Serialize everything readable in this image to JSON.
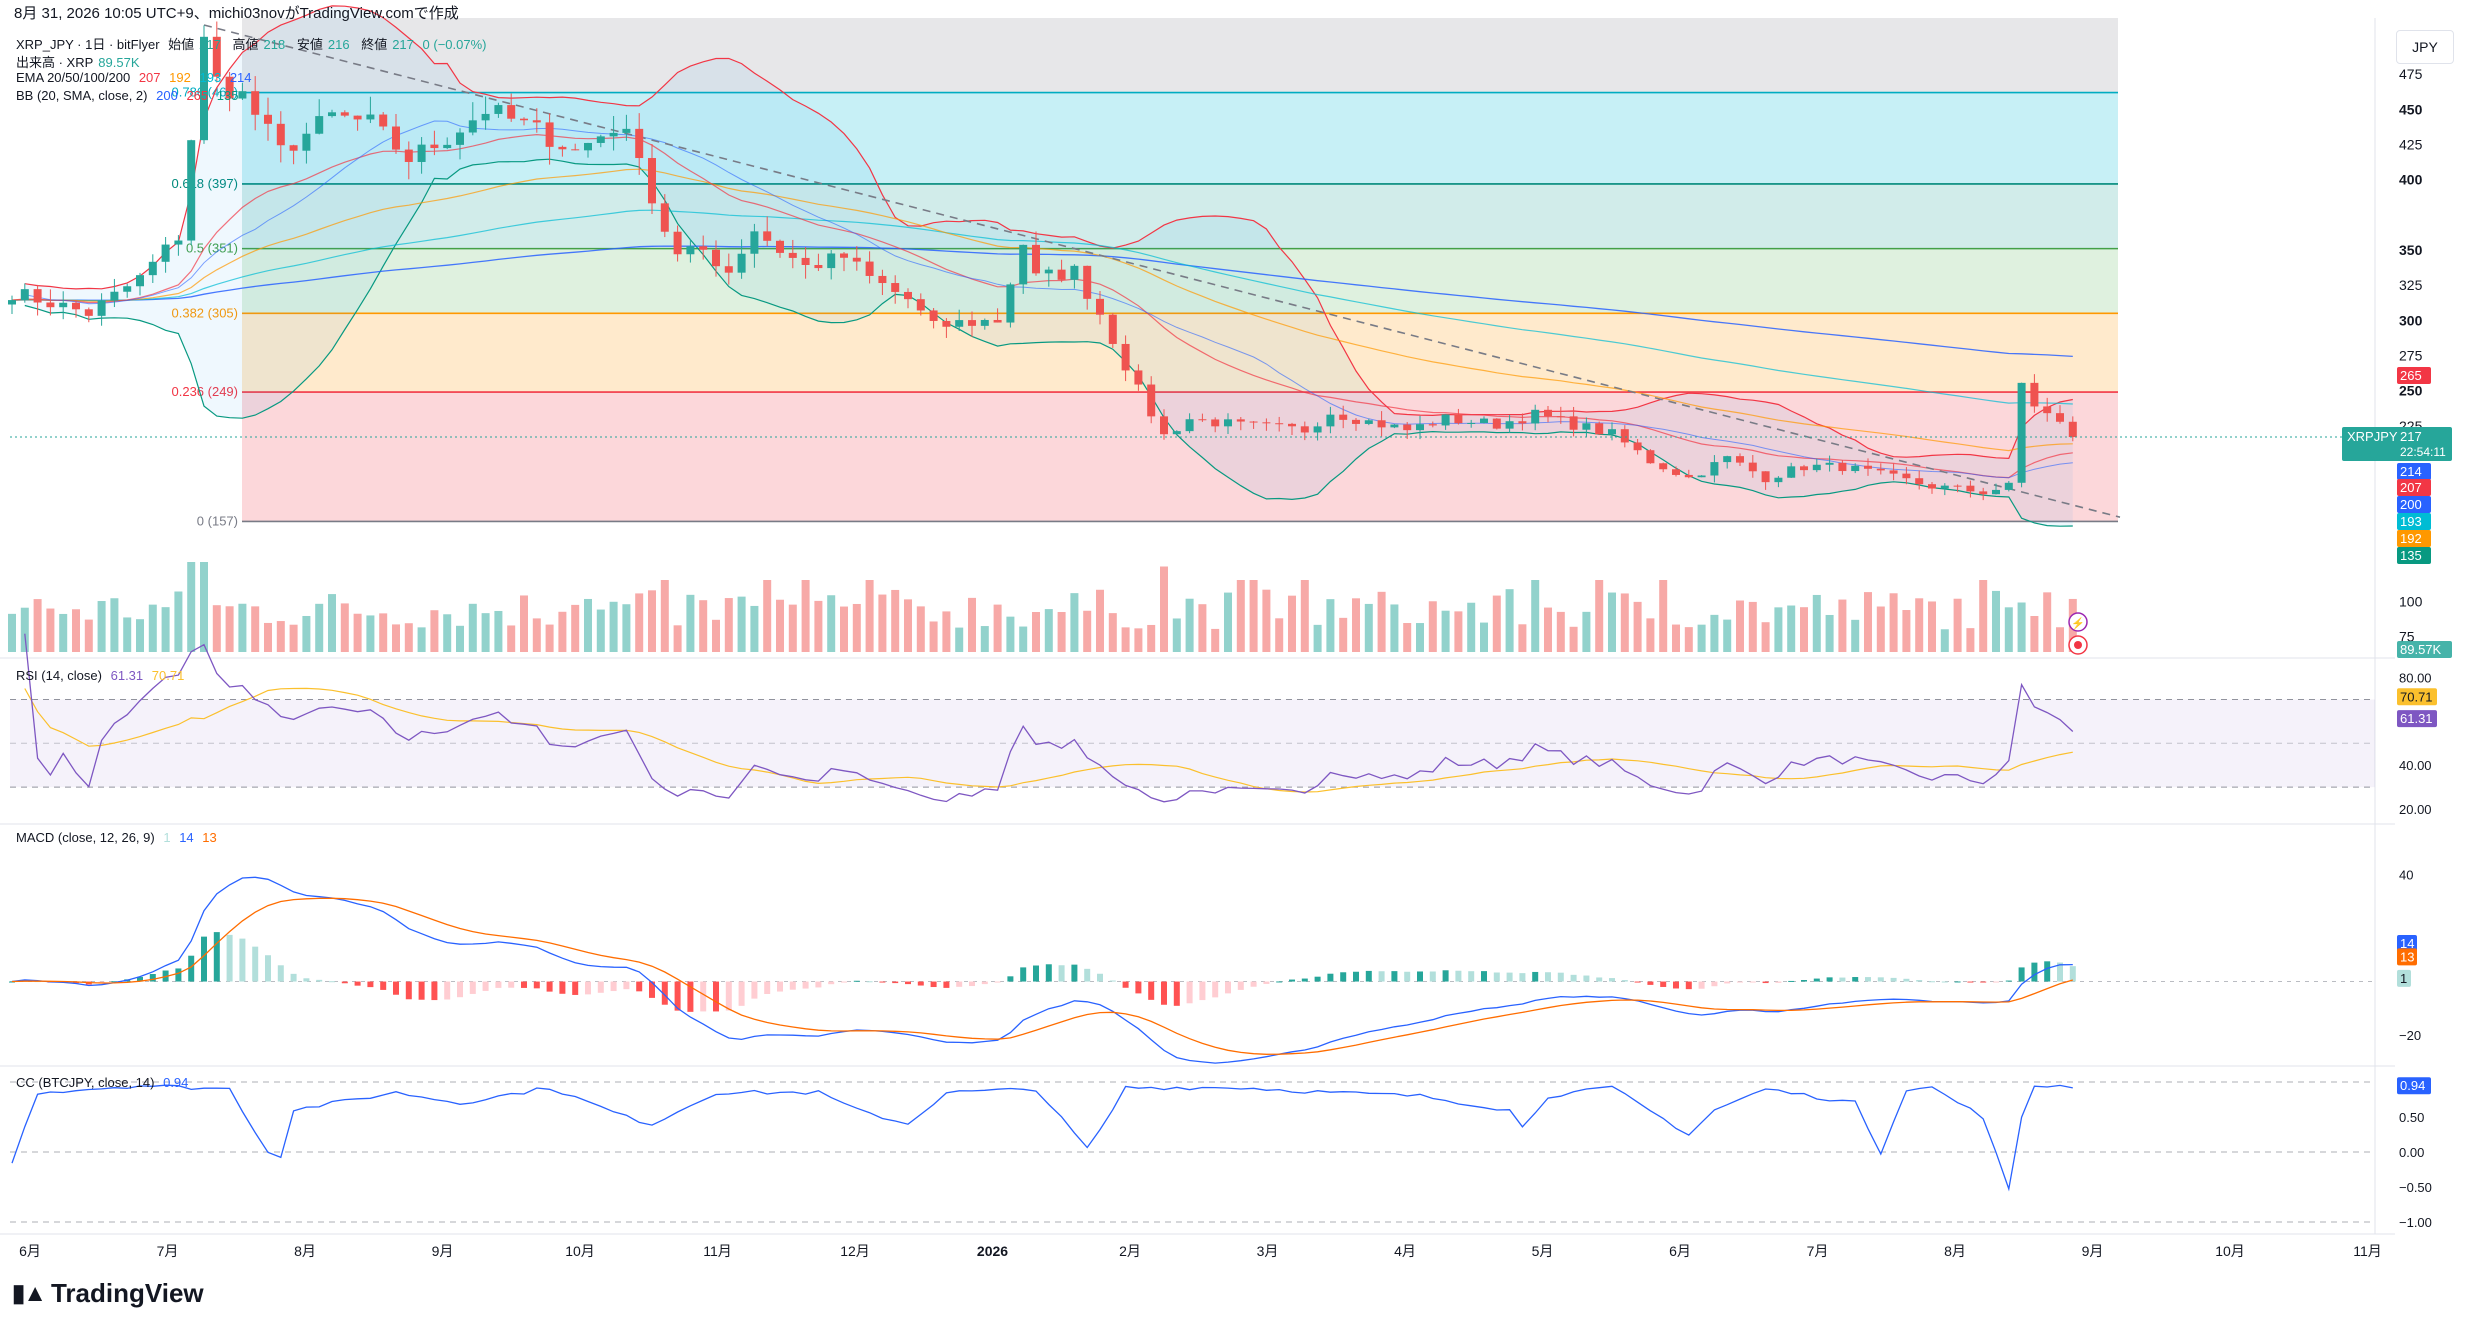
{
  "header": {
    "timestamp_text": "8月 31, 2026 10:05 UTC+9、michi03novがTradingView.comで作成"
  },
  "symbol": {
    "title": "XRP_JPY · 1日 · bitFlyer",
    "open_label": "始値",
    "open": "217",
    "high_label": "高値",
    "high": "218",
    "low_label": "安値",
    "low": "216",
    "close_label": "終値",
    "close": "217",
    "change": "0 (−0.07%)"
  },
  "indicators": {
    "volume": {
      "label": "出来高 · XRP",
      "value": "89.57K"
    },
    "ema": {
      "label": "EMA 20/50/100/200",
      "values": [
        "207",
        "192",
        "193",
        "214"
      ]
    },
    "bb": {
      "label": "BB (20, SMA, close, 2)",
      "values": [
        "200",
        "265",
        "135"
      ]
    },
    "rsi": {
      "label": "RSI (14, close)",
      "values": [
        "61.31",
        "70.71"
      ]
    },
    "macd": {
      "label": "MACD (close, 12, 26, 9)",
      "values": [
        "1",
        "14",
        "13"
      ]
    },
    "cc": {
      "label": "CC (BTCJPY, close, 14)",
      "value": "0.94"
    }
  },
  "currency_button": "JPY",
  "brand": "TradingView",
  "colors": {
    "up": "#26a69a",
    "down": "#ef5350",
    "ema20": "#f23645",
    "ema50": "#ff9800",
    "ema100": "#00bcd4",
    "ema200": "#2962ff",
    "bb_basis": "#2962ff",
    "bb_upper": "#f23645",
    "bb_lower": "#089981",
    "rsi": "#7e57c2",
    "rsi_ma": "#fbc02d",
    "macd": "#2962ff",
    "signal": "#ff6d00",
    "cc": "#2962ff"
  },
  "chart_data": {
    "type": "candlestick",
    "x_ticks": [
      "6月",
      "7月",
      "8月",
      "9月",
      "10月",
      "11月",
      "12月",
      "2026",
      "2月",
      "3月",
      "4月",
      "5月",
      "6月",
      "7月",
      "8月",
      "9月",
      "10月",
      "11月"
    ],
    "price_axis": {
      "ticks": [
        475,
        450,
        425,
        400,
        350,
        325,
        300,
        275,
        250,
        225,
        100,
        75
      ],
      "bold_ticks": [
        450,
        400,
        350,
        300,
        250
      ],
      "ylim": [
        62,
        515
      ]
    },
    "fibonacci": [
      {
        "label": "0.786 (462)",
        "price": 462
      },
      {
        "label": "0.618 (397)",
        "price": 397
      },
      {
        "label": "0.5 (351)",
        "price": 351
      },
      {
        "label": "0.382 (305)",
        "price": 305
      },
      {
        "label": "0.236 (249)",
        "price": 249
      },
      {
        "label": "0 (157)",
        "price": 157
      }
    ],
    "fib_top_price": 515,
    "last_price": {
      "symbol": "XRPJPY",
      "value": "217",
      "countdown": "22:54:11"
    },
    "price_tags": [
      "265",
      "214",
      "207",
      "200",
      "193",
      "192",
      "135"
    ],
    "volume_tag": "89.57K",
    "price_anchors": [
      [
        0,
        320
      ],
      [
        6,
        305
      ],
      [
        10,
        330
      ],
      [
        13,
        360
      ],
      [
        14,
        430
      ],
      [
        15,
        498
      ],
      [
        16,
        470
      ],
      [
        18,
        460
      ],
      [
        21,
        420
      ],
      [
        25,
        445
      ],
      [
        28,
        440
      ],
      [
        31,
        415
      ],
      [
        34,
        430
      ],
      [
        37,
        450
      ],
      [
        41,
        435
      ],
      [
        44,
        420
      ],
      [
        47,
        438
      ],
      [
        49,
        422
      ],
      [
        50,
        385
      ],
      [
        52,
        345
      ],
      [
        54,
        350
      ],
      [
        56,
        335
      ],
      [
        58,
        365
      ],
      [
        60,
        350
      ],
      [
        62,
        338
      ],
      [
        65,
        345
      ],
      [
        67,
        330
      ],
      [
        70,
        315
      ],
      [
        72,
        295
      ],
      [
        74,
        298
      ],
      [
        77,
        300
      ],
      [
        79,
        355
      ],
      [
        80,
        330
      ],
      [
        83,
        335
      ],
      [
        85,
        305
      ],
      [
        88,
        250
      ],
      [
        90,
        218
      ],
      [
        92,
        230
      ],
      [
        96,
        225
      ],
      [
        101,
        222
      ],
      [
        103,
        235
      ],
      [
        106,
        228
      ],
      [
        109,
        222
      ],
      [
        112,
        230
      ],
      [
        116,
        226
      ],
      [
        119,
        233
      ],
      [
        122,
        226
      ],
      [
        125,
        219
      ],
      [
        128,
        200
      ],
      [
        131,
        188
      ],
      [
        134,
        202
      ],
      [
        137,
        188
      ],
      [
        140,
        196
      ],
      [
        143,
        196
      ],
      [
        147,
        188
      ],
      [
        150,
        182
      ],
      [
        154,
        178
      ],
      [
        156,
        182
      ],
      [
        157,
        255
      ],
      [
        158,
        240
      ],
      [
        160,
        226
      ],
      [
        161,
        217
      ]
    ],
    "rsi_axis": {
      "ticks": [
        "80.00",
        "40.00",
        "20.00"
      ],
      "upper": 70,
      "mid": 50,
      "lower": 30,
      "range": [
        15,
        88
      ]
    },
    "macd_axis": {
      "ticks": [
        "40",
        "−20"
      ],
      "range": [
        -30,
        58
      ]
    },
    "cc_axis": {
      "ticks": [
        "0.50",
        "0.00",
        "−0.50",
        "−1.00"
      ],
      "range": [
        -1,
        1
      ]
    },
    "cc_anchors": [
      [
        0,
        -0.15
      ],
      [
        2,
        0.85
      ],
      [
        10,
        0.95
      ],
      [
        17,
        0.9
      ],
      [
        20,
        0.0
      ],
      [
        21,
        -0.05
      ],
      [
        22,
        0.6
      ],
      [
        30,
        0.85
      ],
      [
        35,
        0.7
      ],
      [
        42,
        0.92
      ],
      [
        48,
        0.5
      ],
      [
        50,
        0.4
      ],
      [
        55,
        0.85
      ],
      [
        63,
        0.85
      ],
      [
        66,
        0.6
      ],
      [
        70,
        0.4
      ],
      [
        73,
        0.85
      ],
      [
        80,
        0.9
      ],
      [
        84,
        0.05
      ],
      [
        85,
        0.3
      ],
      [
        87,
        0.92
      ],
      [
        96,
        0.92
      ],
      [
        103,
        0.85
      ],
      [
        110,
        0.8
      ],
      [
        117,
        0.6
      ],
      [
        118,
        0.35
      ],
      [
        120,
        0.8
      ],
      [
        125,
        0.92
      ],
      [
        131,
        0.25
      ],
      [
        133,
        0.6
      ],
      [
        137,
        0.9
      ],
      [
        144,
        0.7
      ],
      [
        146,
        0.0
      ],
      [
        148,
        0.9
      ],
      [
        150,
        0.92
      ],
      [
        154,
        0.5
      ],
      [
        156,
        -0.55
      ],
      [
        157,
        0.5
      ],
      [
        158,
        0.95
      ],
      [
        161,
        0.94
      ]
    ]
  }
}
